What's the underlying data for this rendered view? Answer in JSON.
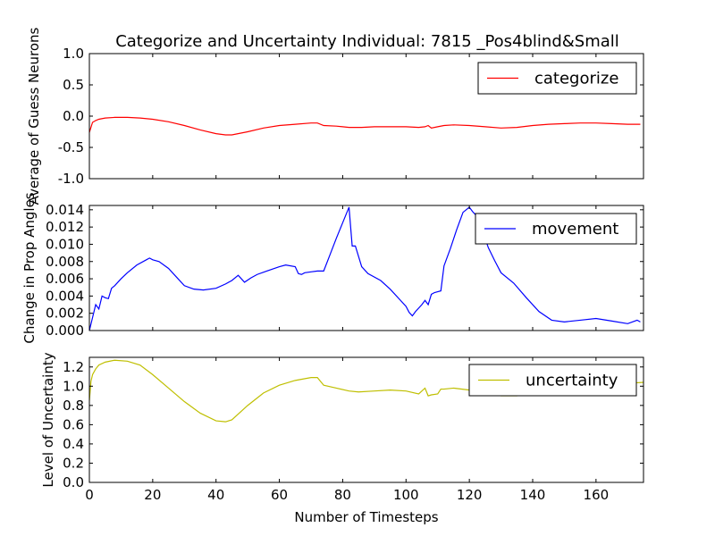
{
  "chart_data": {
    "type": "line",
    "title": "Categorize and Uncertainty Individual: 7815 _Pos4blind&Small",
    "xlabel": "Number of Timesteps",
    "xlim": [
      0,
      175
    ],
    "xticks": [
      0,
      20,
      40,
      60,
      80,
      100,
      120,
      140,
      160
    ],
    "grid": false,
    "panels": [
      {
        "ylabel": "Average of Guess Neurons",
        "ylim": [
          -1.0,
          1.0
        ],
        "yticks": [
          "-1.0",
          "-0.5",
          "0.0",
          "0.5",
          "1.0"
        ],
        "legend_position": "top-right",
        "series": [
          {
            "name": "categorize",
            "color": "#ff0000",
            "x": [
              0,
              0.5,
              1,
              2,
              3,
              5,
              8,
              12,
              16,
              20,
              25,
              30,
              35,
              40,
              43,
              45,
              50,
              55,
              60,
              65,
              70,
              72,
              74,
              78,
              82,
              86,
              90,
              95,
              100,
              104,
              106,
              107,
              108,
              110,
              112,
              115,
              120,
              125,
              130,
              135,
              140,
              145,
              150,
              155,
              160,
              165,
              170,
              174
            ],
            "y": [
              -0.26,
              -0.18,
              -0.1,
              -0.07,
              -0.05,
              -0.03,
              -0.02,
              -0.02,
              -0.03,
              -0.05,
              -0.09,
              -0.15,
              -0.22,
              -0.28,
              -0.3,
              -0.3,
              -0.25,
              -0.19,
              -0.15,
              -0.13,
              -0.11,
              -0.11,
              -0.15,
              -0.16,
              -0.18,
              -0.18,
              -0.17,
              -0.17,
              -0.17,
              -0.18,
              -0.17,
              -0.15,
              -0.19,
              -0.17,
              -0.15,
              -0.14,
              -0.15,
              -0.17,
              -0.19,
              -0.18,
              -0.15,
              -0.13,
              -0.12,
              -0.11,
              -0.11,
              -0.12,
              -0.13,
              -0.13
            ]
          }
        ]
      },
      {
        "ylabel": "Change in Prop Angles",
        "ylim": [
          0.0,
          0.0145
        ],
        "yticks": [
          "0.000",
          "0.002",
          "0.004",
          "0.006",
          "0.008",
          "0.010",
          "0.012",
          "0.014"
        ],
        "legend_position": "top-right",
        "series": [
          {
            "name": "movement",
            "color": "#0000ff",
            "x": [
              0,
              1,
              2,
              3,
              4,
              5,
              6,
              7,
              8,
              10,
              12,
              15,
              18,
              19,
              20,
              22,
              25,
              28,
              30,
              33,
              36,
              40,
              43,
              45,
              47,
              49,
              51,
              53,
              56,
              60,
              62,
              65,
              66,
              67,
              68,
              70,
              72,
              74,
              76,
              78,
              80,
              82,
              83,
              84,
              86,
              88,
              92,
              95,
              98,
              100,
              101,
              102,
              103,
              104,
              105,
              106,
              107,
              108,
              109,
              110,
              111,
              112,
              113,
              114,
              115,
              116,
              118,
              120,
              121,
              122,
              124,
              126,
              128,
              130,
              134,
              138,
              142,
              146,
              150,
              155,
              160,
              165,
              170,
              173,
              174
            ],
            "y": [
              0.0,
              0.0015,
              0.003,
              0.0025,
              0.004,
              0.0038,
              0.0037,
              0.0049,
              0.0052,
              0.006,
              0.0067,
              0.0076,
              0.0082,
              0.0084,
              0.0082,
              0.008,
              0.0072,
              0.006,
              0.0052,
              0.0048,
              0.0047,
              0.0049,
              0.0054,
              0.0058,
              0.0064,
              0.0056,
              0.0061,
              0.0065,
              0.0069,
              0.0074,
              0.0076,
              0.0074,
              0.0066,
              0.0065,
              0.0067,
              0.0068,
              0.0069,
              0.0069,
              0.0088,
              0.0107,
              0.0125,
              0.0143,
              0.0098,
              0.0098,
              0.0074,
              0.0066,
              0.0058,
              0.0048,
              0.0036,
              0.0028,
              0.0021,
              0.0017,
              0.0022,
              0.0026,
              0.003,
              0.0035,
              0.003,
              0.0042,
              0.0044,
              0.0045,
              0.0046,
              0.0075,
              0.0085,
              0.0095,
              0.0106,
              0.0117,
              0.0137,
              0.0143,
              0.0138,
              0.0134,
              0.0117,
              0.0096,
              0.0081,
              0.0067,
              0.0055,
              0.0038,
              0.0022,
              0.0012,
              0.001,
              0.0012,
              0.0014,
              0.0011,
              0.0008,
              0.0012,
              0.001
            ]
          }
        ]
      },
      {
        "ylabel": "Level of Uncertainty",
        "ylim": [
          0.0,
          1.3
        ],
        "yticks": [
          "0.0",
          "0.2",
          "0.4",
          "0.6",
          "0.8",
          "1.0",
          "1.2"
        ],
        "legend_position": "top-right",
        "series": [
          {
            "name": "uncertainty",
            "color": "#bfbf00",
            "x": [
              0,
              0.5,
              1,
              2,
              3,
              5,
              8,
              12,
              16,
              20,
              25,
              30,
              35,
              40,
              43,
              45,
              50,
              55,
              60,
              65,
              70,
              72,
              74,
              78,
              82,
              85,
              90,
              95,
              100,
              104,
              106,
              107,
              108,
              110,
              111,
              112,
              115,
              120,
              125,
              130,
              135,
              140,
              145,
              150,
              155,
              160,
              165,
              170,
              175
            ],
            "y": [
              0.85,
              1.05,
              1.12,
              1.18,
              1.22,
              1.25,
              1.27,
              1.26,
              1.22,
              1.12,
              0.98,
              0.84,
              0.72,
              0.64,
              0.63,
              0.65,
              0.8,
              0.93,
              1.01,
              1.06,
              1.09,
              1.09,
              1.01,
              0.98,
              0.95,
              0.94,
              0.95,
              0.96,
              0.95,
              0.92,
              0.98,
              0.9,
              0.91,
              0.92,
              0.97,
              0.97,
              0.98,
              0.96,
              0.93,
              0.9,
              0.9,
              0.92,
              0.95,
              0.98,
              1.0,
              1.01,
              1.02,
              1.03,
              1.04
            ]
          }
        ]
      }
    ]
  }
}
